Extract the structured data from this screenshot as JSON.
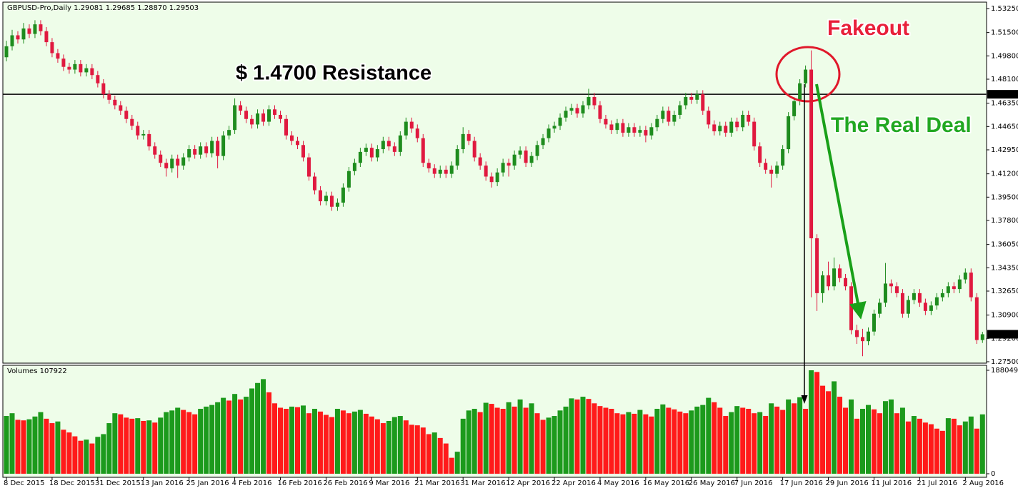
{
  "chart_data": {
    "type": "candlestick",
    "symbol": "GBPUSD-Pro,Daily",
    "ohlc_labels": [
      "1.29081",
      "1.29685",
      "1.28870",
      "1.29503"
    ],
    "volume_title": "Volumes",
    "up_color": "#1e8c1e",
    "down_color": "#e0193f",
    "volume_up_color": "#1c9a1c",
    "volume_down_color": "#ff1a1a",
    "resistance": {
      "value": 1.47,
      "label": "1.47000"
    },
    "annotations": [
      "$ 1.4700 Resistance",
      "Fakeout",
      "The Real Deal"
    ],
    "ylim": [
      1.275,
      1.5325
    ],
    "yticks": [
      {
        "value": 1.5325,
        "label": "1.53250"
      },
      {
        "value": 1.515,
        "label": "1.51500"
      },
      {
        "value": 1.498,
        "label": "1.49800"
      },
      {
        "value": 1.481,
        "label": "1.48100"
      },
      {
        "value": 1.4635,
        "label": "1.46350"
      },
      {
        "value": 1.4465,
        "label": "1.44650"
      },
      {
        "value": 1.4295,
        "label": "1.42950"
      },
      {
        "value": 1.412,
        "label": "1.41200"
      },
      {
        "value": 1.395,
        "label": "1.39500"
      },
      {
        "value": 1.378,
        "label": "1.37800"
      },
      {
        "value": 1.3605,
        "label": "1.36050"
      },
      {
        "value": 1.3435,
        "label": "1.34350"
      },
      {
        "value": 1.3265,
        "label": "1.32650"
      },
      {
        "value": 1.309,
        "label": "1.30900"
      },
      {
        "value": 1.292,
        "label": "1.29200"
      },
      {
        "value": 1.275,
        "label": "1.27500"
      }
    ],
    "y2lim": [
      0,
      188049
    ],
    "y2ticks": [
      188049,
      0
    ],
    "categories": [
      "8 Dec 2015",
      null,
      null,
      null,
      null,
      null,
      null,
      null,
      "18 Dec 2015",
      null,
      null,
      null,
      null,
      null,
      null,
      null,
      "31 Dec 2015",
      null,
      null,
      null,
      null,
      null,
      null,
      null,
      "13 Jan 2016",
      null,
      null,
      null,
      null,
      null,
      null,
      null,
      "25 Jan 2016",
      null,
      null,
      null,
      null,
      null,
      null,
      null,
      "4 Feb 2016",
      null,
      null,
      null,
      null,
      null,
      null,
      null,
      "16 Feb 2016",
      null,
      null,
      null,
      null,
      null,
      null,
      null,
      "26 Feb 2016",
      null,
      null,
      null,
      null,
      null,
      null,
      null,
      "9 Mar 2016",
      null,
      null,
      null,
      null,
      null,
      null,
      null,
      "21 Mar 2016",
      null,
      null,
      null,
      null,
      null,
      null,
      null,
      "31 Mar 2016",
      null,
      null,
      null,
      null,
      null,
      null,
      null,
      "12 Apr 2016",
      null,
      null,
      null,
      null,
      null,
      null,
      null,
      "22 Apr 2016",
      null,
      null,
      null,
      null,
      null,
      null,
      null,
      "4 May 2016",
      null,
      null,
      null,
      null,
      null,
      null,
      null,
      "16 May 2016",
      null,
      null,
      null,
      null,
      null,
      null,
      null,
      "26 May 2016",
      null,
      null,
      null,
      null,
      null,
      null,
      null,
      "7 Jun 2016",
      null,
      null,
      null,
      null,
      null,
      null,
      null,
      "17 Jun 2016",
      null,
      null,
      null,
      null,
      null,
      null,
      null,
      "29 Jun 2016",
      null,
      null,
      null,
      null,
      null,
      null,
      null,
      "11 Jul 2016",
      null,
      null,
      null,
      null,
      null,
      null,
      null,
      "21 Jul 2016",
      null,
      null,
      null,
      null,
      null,
      null,
      null,
      "2 Aug 2016",
      null,
      null,
      null
    ],
    "ohlc": [
      [
        1.497,
        1.509,
        1.494,
        1.505
      ],
      [
        1.505,
        1.517,
        1.502,
        1.513
      ],
      [
        1.513,
        1.516,
        1.507,
        1.51
      ],
      [
        1.51,
        1.522,
        1.507,
        1.518
      ],
      [
        1.518,
        1.521,
        1.511,
        1.514
      ],
      [
        1.514,
        1.524,
        1.511,
        1.521
      ],
      [
        1.521,
        1.524,
        1.513,
        1.516
      ],
      [
        1.516,
        1.519,
        1.505,
        1.508
      ],
      [
        1.508,
        1.511,
        1.497,
        1.5
      ],
      [
        1.5,
        1.503,
        1.493,
        1.496
      ],
      [
        1.496,
        1.499,
        1.487,
        1.49
      ],
      [
        1.49,
        1.493,
        1.485,
        1.488
      ],
      [
        1.488,
        1.495,
        1.485,
        1.492
      ],
      [
        1.492,
        1.495,
        1.483,
        1.486
      ],
      [
        1.486,
        1.492,
        1.483,
        1.489
      ],
      [
        1.489,
        1.492,
        1.481,
        1.484
      ],
      [
        1.484,
        1.487,
        1.475,
        1.478
      ],
      [
        1.478,
        1.481,
        1.467,
        1.47
      ],
      [
        1.47,
        1.473,
        1.463,
        1.466
      ],
      [
        1.466,
        1.469,
        1.459,
        1.462
      ],
      [
        1.462,
        1.465,
        1.455,
        1.458
      ],
      [
        1.458,
        1.461,
        1.449,
        1.452
      ],
      [
        1.452,
        1.455,
        1.444,
        1.447
      ],
      [
        1.447,
        1.45,
        1.437,
        1.44
      ],
      [
        1.44,
        1.444,
        1.437,
        1.441
      ],
      [
        1.441,
        1.444,
        1.429,
        1.432
      ],
      [
        1.432,
        1.435,
        1.423,
        1.426
      ],
      [
        1.426,
        1.429,
        1.417,
        1.42
      ],
      [
        1.42,
        1.423,
        1.41,
        1.416
      ],
      [
        1.416,
        1.426,
        1.413,
        1.423
      ],
      [
        1.423,
        1.426,
        1.409,
        1.418
      ],
      [
        1.418,
        1.427,
        1.415,
        1.424
      ],
      [
        1.424,
        1.433,
        1.421,
        1.43
      ],
      [
        1.43,
        1.433,
        1.423,
        1.426
      ],
      [
        1.426,
        1.435,
        1.423,
        1.432
      ],
      [
        1.432,
        1.435,
        1.424,
        1.427
      ],
      [
        1.427,
        1.439,
        1.424,
        1.436
      ],
      [
        1.436,
        1.439,
        1.416,
        1.425
      ],
      [
        1.425,
        1.443,
        1.422,
        1.44
      ],
      [
        1.44,
        1.447,
        1.437,
        1.444
      ],
      [
        1.444,
        1.467,
        1.441,
        1.462
      ],
      [
        1.462,
        1.465,
        1.455,
        1.458
      ],
      [
        1.458,
        1.461,
        1.449,
        1.452
      ],
      [
        1.452,
        1.455,
        1.445,
        1.448
      ],
      [
        1.448,
        1.459,
        1.445,
        1.456
      ],
      [
        1.456,
        1.459,
        1.447,
        1.45
      ],
      [
        1.45,
        1.462,
        1.447,
        1.459
      ],
      [
        1.459,
        1.462,
        1.452,
        1.455
      ],
      [
        1.455,
        1.458,
        1.449,
        1.452
      ],
      [
        1.452,
        1.455,
        1.437,
        1.44
      ],
      [
        1.44,
        1.443,
        1.433,
        1.436
      ],
      [
        1.436,
        1.439,
        1.43,
        1.433
      ],
      [
        1.433,
        1.436,
        1.421,
        1.424
      ],
      [
        1.424,
        1.427,
        1.407,
        1.41
      ],
      [
        1.41,
        1.413,
        1.397,
        1.4
      ],
      [
        1.4,
        1.403,
        1.389,
        1.392
      ],
      [
        1.392,
        1.399,
        1.389,
        1.396
      ],
      [
        1.396,
        1.399,
        1.385,
        1.388
      ],
      [
        1.388,
        1.394,
        1.385,
        1.391
      ],
      [
        1.391,
        1.405,
        1.388,
        1.402
      ],
      [
        1.402,
        1.417,
        1.399,
        1.414
      ],
      [
        1.414,
        1.423,
        1.411,
        1.42
      ],
      [
        1.42,
        1.431,
        1.417,
        1.428
      ],
      [
        1.428,
        1.434,
        1.425,
        1.431
      ],
      [
        1.431,
        1.434,
        1.421,
        1.424
      ],
      [
        1.424,
        1.433,
        1.421,
        1.43
      ],
      [
        1.43,
        1.439,
        1.427,
        1.436
      ],
      [
        1.436,
        1.439,
        1.429,
        1.432
      ],
      [
        1.432,
        1.435,
        1.425,
        1.428
      ],
      [
        1.428,
        1.443,
        1.425,
        1.44
      ],
      [
        1.44,
        1.453,
        1.437,
        1.45
      ],
      [
        1.45,
        1.453,
        1.442,
        1.445
      ],
      [
        1.445,
        1.448,
        1.435,
        1.438
      ],
      [
        1.438,
        1.441,
        1.417,
        1.42
      ],
      [
        1.42,
        1.423,
        1.413,
        1.416
      ],
      [
        1.416,
        1.419,
        1.409,
        1.412
      ],
      [
        1.412,
        1.418,
        1.409,
        1.415
      ],
      [
        1.415,
        1.418,
        1.409,
        1.412
      ],
      [
        1.412,
        1.421,
        1.409,
        1.418
      ],
      [
        1.418,
        1.433,
        1.415,
        1.43
      ],
      [
        1.43,
        1.446,
        1.427,
        1.441
      ],
      [
        1.441,
        1.444,
        1.433,
        1.436
      ],
      [
        1.436,
        1.439,
        1.421,
        1.424
      ],
      [
        1.424,
        1.427,
        1.415,
        1.418
      ],
      [
        1.418,
        1.421,
        1.407,
        1.41
      ],
      [
        1.41,
        1.413,
        1.402,
        1.406
      ],
      [
        1.406,
        1.416,
        1.403,
        1.413
      ],
      [
        1.413,
        1.423,
        1.41,
        1.42
      ],
      [
        1.42,
        1.423,
        1.41,
        1.418
      ],
      [
        1.418,
        1.429,
        1.415,
        1.426
      ],
      [
        1.426,
        1.432,
        1.423,
        1.429
      ],
      [
        1.429,
        1.432,
        1.417,
        1.42
      ],
      [
        1.42,
        1.428,
        1.417,
        1.425
      ],
      [
        1.425,
        1.436,
        1.422,
        1.433
      ],
      [
        1.433,
        1.441,
        1.43,
        1.438
      ],
      [
        1.438,
        1.448,
        1.435,
        1.445
      ],
      [
        1.445,
        1.45,
        1.442,
        1.447
      ],
      [
        1.447,
        1.456,
        1.444,
        1.453
      ],
      [
        1.453,
        1.461,
        1.45,
        1.458
      ],
      [
        1.458,
        1.463,
        1.455,
        1.46
      ],
      [
        1.46,
        1.463,
        1.453,
        1.456
      ],
      [
        1.456,
        1.465,
        1.453,
        1.462
      ],
      [
        1.462,
        1.474,
        1.459,
        1.468
      ],
      [
        1.468,
        1.471,
        1.459,
        1.462
      ],
      [
        1.462,
        1.465,
        1.449,
        1.452
      ],
      [
        1.452,
        1.455,
        1.445,
        1.448
      ],
      [
        1.448,
        1.451,
        1.441,
        1.444
      ],
      [
        1.444,
        1.452,
        1.441,
        1.449
      ],
      [
        1.449,
        1.452,
        1.439,
        1.442
      ],
      [
        1.442,
        1.449,
        1.439,
        1.446
      ],
      [
        1.446,
        1.449,
        1.439,
        1.442
      ],
      [
        1.442,
        1.447,
        1.439,
        1.444
      ],
      [
        1.444,
        1.447,
        1.435,
        1.44
      ],
      [
        1.44,
        1.449,
        1.437,
        1.446
      ],
      [
        1.446,
        1.455,
        1.443,
        1.452
      ],
      [
        1.452,
        1.461,
        1.449,
        1.458
      ],
      [
        1.458,
        1.461,
        1.447,
        1.45
      ],
      [
        1.45,
        1.458,
        1.447,
        1.455
      ],
      [
        1.455,
        1.465,
        1.452,
        1.462
      ],
      [
        1.462,
        1.471,
        1.459,
        1.468
      ],
      [
        1.468,
        1.471,
        1.463,
        1.466
      ],
      [
        1.466,
        1.473,
        1.463,
        1.47
      ],
      [
        1.47,
        1.473,
        1.455,
        1.458
      ],
      [
        1.458,
        1.461,
        1.445,
        1.448
      ],
      [
        1.448,
        1.451,
        1.44,
        1.443
      ],
      [
        1.443,
        1.45,
        1.44,
        1.447
      ],
      [
        1.447,
        1.45,
        1.439,
        1.442
      ],
      [
        1.442,
        1.453,
        1.439,
        1.45
      ],
      [
        1.45,
        1.453,
        1.443,
        1.446
      ],
      [
        1.446,
        1.458,
        1.443,
        1.455
      ],
      [
        1.455,
        1.458,
        1.447,
        1.45
      ],
      [
        1.45,
        1.453,
        1.429,
        1.432
      ],
      [
        1.432,
        1.435,
        1.417,
        1.42
      ],
      [
        1.42,
        1.423,
        1.412,
        1.415
      ],
      [
        1.415,
        1.418,
        1.402,
        1.412
      ],
      [
        1.412,
        1.421,
        1.409,
        1.418
      ],
      [
        1.418,
        1.433,
        1.415,
        1.43
      ],
      [
        1.43,
        1.457,
        1.427,
        1.454
      ],
      [
        1.454,
        1.468,
        1.451,
        1.465
      ],
      [
        1.465,
        1.481,
        1.462,
        1.478
      ],
      [
        1.478,
        1.491,
        1.475,
        1.488
      ],
      [
        1.488,
        1.502,
        1.322,
        1.365
      ],
      [
        1.365,
        1.368,
        1.312,
        1.325
      ],
      [
        1.325,
        1.341,
        1.318,
        1.338
      ],
      [
        1.338,
        1.348,
        1.327,
        1.33
      ],
      [
        1.33,
        1.351,
        1.327,
        1.343
      ],
      [
        1.343,
        1.346,
        1.333,
        1.336
      ],
      [
        1.336,
        1.339,
        1.327,
        1.33
      ],
      [
        1.33,
        1.333,
        1.295,
        1.298
      ],
      [
        1.298,
        1.302,
        1.288,
        1.293
      ],
      [
        1.293,
        1.299,
        1.279,
        1.29
      ],
      [
        1.29,
        1.3,
        1.287,
        1.297
      ],
      [
        1.297,
        1.313,
        1.294,
        1.31
      ],
      [
        1.31,
        1.321,
        1.307,
        1.318
      ],
      [
        1.318,
        1.347,
        1.315,
        1.332
      ],
      [
        1.332,
        1.335,
        1.325,
        1.33
      ],
      [
        1.33,
        1.333,
        1.322,
        1.325
      ],
      [
        1.325,
        1.328,
        1.307,
        1.31
      ],
      [
        1.31,
        1.323,
        1.307,
        1.32
      ],
      [
        1.32,
        1.328,
        1.317,
        1.325
      ],
      [
        1.325,
        1.328,
        1.315,
        1.318
      ],
      [
        1.318,
        1.321,
        1.309,
        1.312
      ],
      [
        1.312,
        1.319,
        1.309,
        1.316
      ],
      [
        1.316,
        1.325,
        1.313,
        1.322
      ],
      [
        1.322,
        1.328,
        1.319,
        1.325
      ],
      [
        1.325,
        1.333,
        1.322,
        1.33
      ],
      [
        1.33,
        1.333,
        1.325,
        1.328
      ],
      [
        1.328,
        1.338,
        1.325,
        1.335
      ],
      [
        1.335,
        1.343,
        1.332,
        1.34
      ],
      [
        1.34,
        1.343,
        1.319,
        1.322
      ],
      [
        1.322,
        1.325,
        1.288,
        1.2908
      ],
      [
        1.29081,
        1.29685,
        1.2887,
        1.29503
      ]
    ],
    "volumes": [
      105000,
      110000,
      98000,
      97000,
      99000,
      104000,
      112000,
      100000,
      92000,
      95000,
      80000,
      75000,
      68000,
      60000,
      62000,
      55000,
      67000,
      72000,
      92000,
      110000,
      108000,
      102000,
      100000,
      101000,
      96000,
      97000,
      93000,
      102000,
      112000,
      115000,
      120000,
      116000,
      112000,
      108000,
      118000,
      122000,
      125000,
      130000,
      138000,
      133000,
      145000,
      135000,
      140000,
      155000,
      165000,
      172000,
      148000,
      128000,
      120000,
      118000,
      122000,
      121000,
      124000,
      110000,
      118000,
      113000,
      107000,
      103000,
      118000,
      115000,
      110000,
      113000,
      116000,
      109000,
      104000,
      99000,
      92000,
      96000,
      103000,
      105000,
      97000,
      89000,
      88000,
      84000,
      72000,
      75000,
      65000,
      55000,
      29000,
      40000,
      100000,
      115000,
      118000,
      112000,
      129000,
      127000,
      120000,
      118000,
      130000,
      122000,
      135000,
      120000,
      128000,
      110000,
      98000,
      102000,
      105000,
      115000,
      122000,
      137000,
      135000,
      140000,
      136000,
      128000,
      123000,
      120000,
      118000,
      110000,
      108000,
      112000,
      109000,
      116000,
      108000,
      104000,
      118000,
      126000,
      120000,
      117000,
      113000,
      110000,
      115000,
      122000,
      125000,
      138000,
      130000,
      120000,
      105000,
      112000,
      123000,
      120000,
      118000,
      110000,
      112000,
      105000,
      128000,
      122000,
      116000,
      135000,
      128000,
      139000,
      118000,
      188049,
      185000,
      160000,
      150000,
      168000,
      140000,
      120000,
      135000,
      100000,
      118000,
      125000,
      117000,
      110000,
      132000,
      135000,
      110000,
      120000,
      95000,
      105000,
      100000,
      93000,
      90000,
      82000,
      78000,
      101000,
      100000,
      88000,
      95000,
      104000,
      82000,
      107922
    ]
  }
}
